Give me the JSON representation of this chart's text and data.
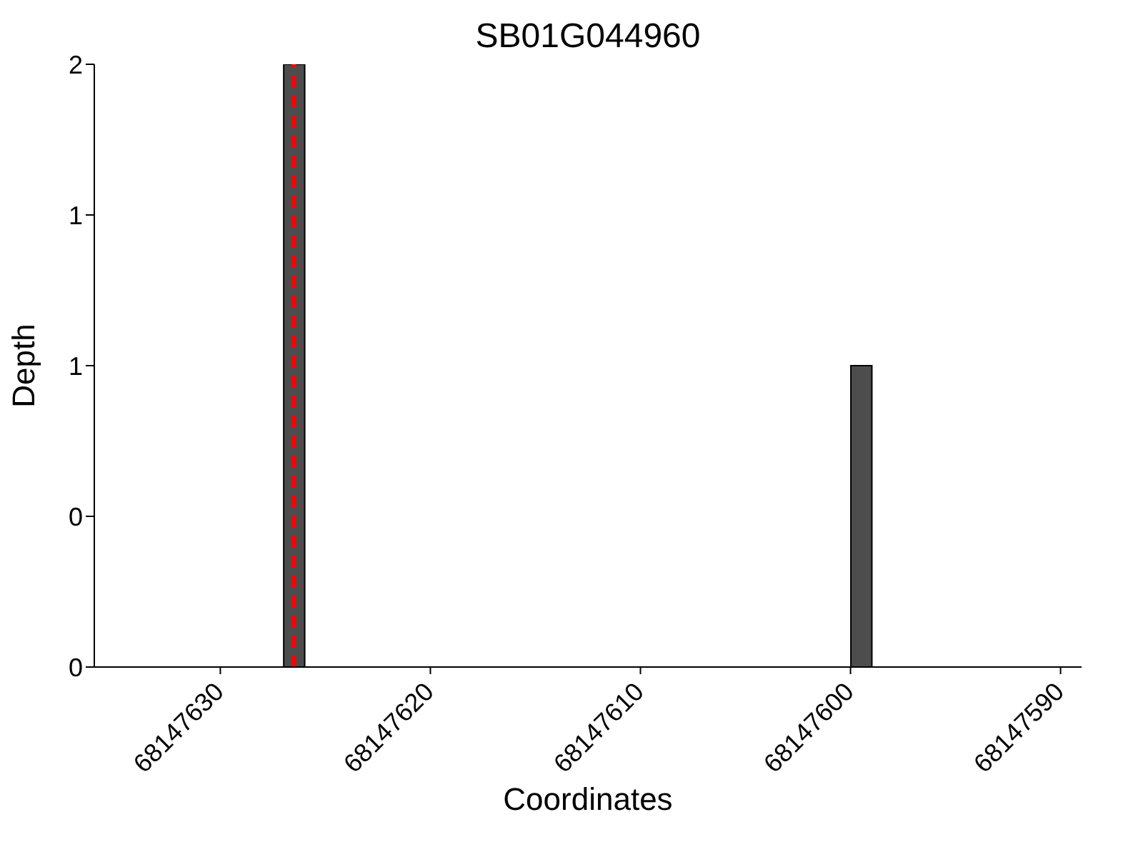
{
  "chart_data": {
    "type": "histogram",
    "title": "SB01G044960",
    "xlabel": "Coordinates",
    "ylabel": "Depth",
    "bins": [
      68147599,
      68147600,
      68147626,
      68147627
    ],
    "values": [
      1,
      0,
      2
    ],
    "color": "#4d4d4d",
    "xlim": [
      68147636,
      68147589
    ],
    "xticks": [
      68147630,
      68147620,
      68147610,
      68147600,
      68147590
    ],
    "ylim": [
      0,
      2
    ],
    "yticks": [
      0,
      {
        "value": 0.5,
        "label": "0"
      },
      1,
      {
        "value": 1.5,
        "label": "1"
      },
      2
    ],
    "ref_lines": [
      {
        "axis": "x",
        "value": 68147626.5,
        "color": "#ff0000",
        "line_style": "dashed"
      }
    ],
    "grid": false,
    "legend": false
  }
}
